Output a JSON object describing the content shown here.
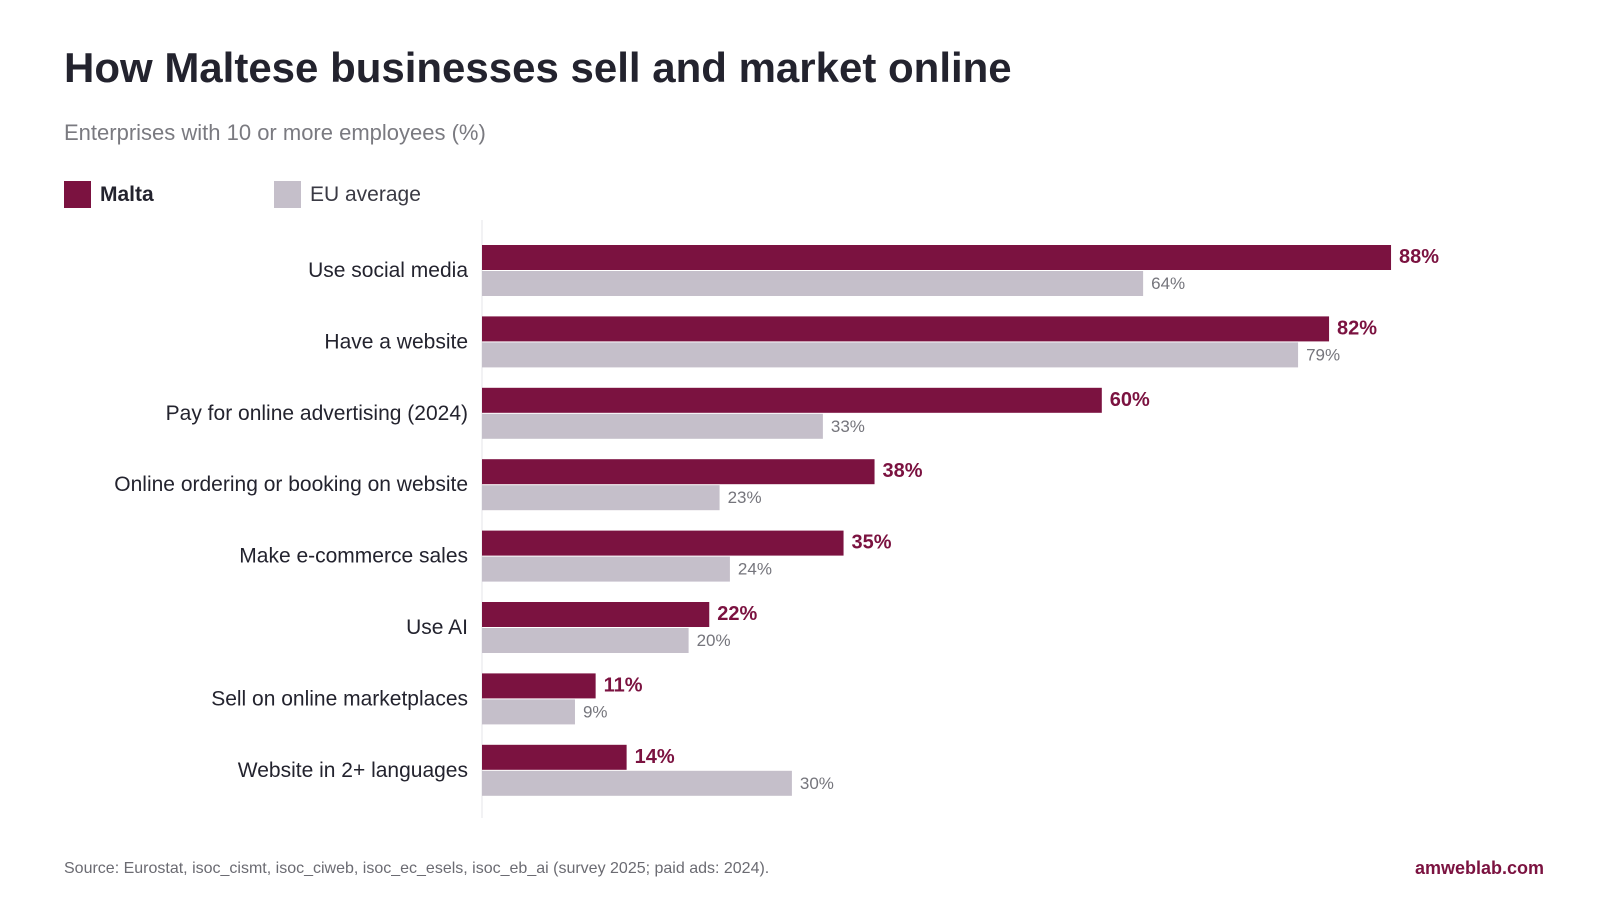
{
  "header": {
    "title": "How Maltese businesses sell and market online",
    "subtitle": "Enterprises with 10 or more employees (%)"
  },
  "legend": {
    "malta": "Malta",
    "eu": "EU average"
  },
  "colors": {
    "malta": "#7b1240",
    "eu": "#c5bfca",
    "axis": "#e4e4e8",
    "category_text": "#23232e",
    "eu_label": "#75757c"
  },
  "chart_data": {
    "type": "bar",
    "orientation": "horizontal",
    "categories": [
      "Use social media",
      "Have a website",
      "Pay for online advertising (2024)",
      "Online ordering or booking on website",
      "Make e-commerce sales",
      "Use AI",
      "Sell on online marketplaces",
      "Website in 2+ languages"
    ],
    "series": [
      {
        "name": "Malta",
        "values": [
          88,
          82,
          60,
          38,
          35,
          22,
          11,
          14
        ]
      },
      {
        "name": "EU average",
        "values": [
          64,
          79,
          33,
          23,
          24,
          20,
          9,
          30
        ]
      }
    ],
    "value_suffix": "%",
    "xlim": [
      0,
      100
    ],
    "grid": false,
    "legend_position": "top-left"
  },
  "footer": {
    "source": "Source: Eurostat, isoc_cismt, isoc_ciweb, isoc_ec_esels, isoc_eb_ai (survey 2025; paid ads: 2024).",
    "brand": "amweblab.com"
  }
}
